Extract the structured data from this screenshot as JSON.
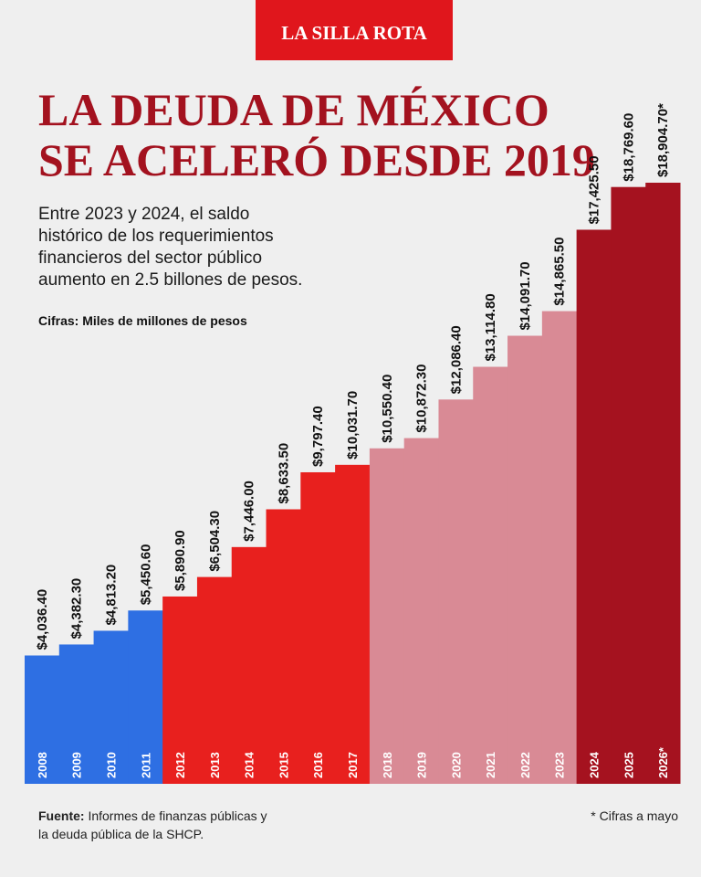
{
  "brand": "LA SILLA ROTA",
  "chart_data": {
    "type": "bar",
    "title_lines": [
      "LA DEUDA DE MÉXICO",
      "SE ACELERÓ DESDE 2019"
    ],
    "subtitle_lines": [
      "Entre 2023 y 2024, el saldo",
      "histórico de los requerimientos",
      "financieros del sector público",
      "aumento en 2.5 billones de pesos."
    ],
    "units_note": "Cifras: Miles de millones de pesos",
    "categories": [
      "2008",
      "2009",
      "2010",
      "2011",
      "2012",
      "2013",
      "2014",
      "2015",
      "2016",
      "2017",
      "2018",
      "2019",
      "2020",
      "2021",
      "2022",
      "2023",
      "2024",
      "2025",
      "2026*"
    ],
    "values": [
      4036.4,
      4382.3,
      4813.2,
      5450.6,
      5890.9,
      6504.3,
      7446.0,
      8633.5,
      9797.4,
      10031.7,
      10550.4,
      10872.3,
      12086.4,
      13114.8,
      14091.7,
      14865.5,
      17425.5,
      18769.6,
      18904.7
    ],
    "value_labels": [
      "$4,036.40",
      "$4,382.30",
      "$4,813.20",
      "$5,450.60",
      "$5,890.90",
      "$6,504.30",
      "$7,446.00",
      "$8,633.50",
      "$9,797.40",
      "$10,031.70",
      "$10,550.40",
      "$10,872.30",
      "$12,086.40",
      "$13,114.80",
      "$14,091.70",
      "$14,865.50",
      "$17,425.50",
      "$18,769.60",
      "$18,904.70*"
    ],
    "colors": [
      "#2e6fe3",
      "#2e6fe3",
      "#2e6fe3",
      "#2e6fe3",
      "#e8201e",
      "#e8201e",
      "#e8201e",
      "#e8201e",
      "#e8201e",
      "#e8201e",
      "#d98a95",
      "#d98a95",
      "#d98a95",
      "#d98a95",
      "#d98a95",
      "#d98a95",
      "#a5121f",
      "#a5121f",
      "#a5121f"
    ],
    "source_label": "Fuente:",
    "source_lines": [
      "Informes de finanzas públicas y",
      "la deuda pública de la SHCP."
    ],
    "footnote": "* Cifras a mayo"
  }
}
